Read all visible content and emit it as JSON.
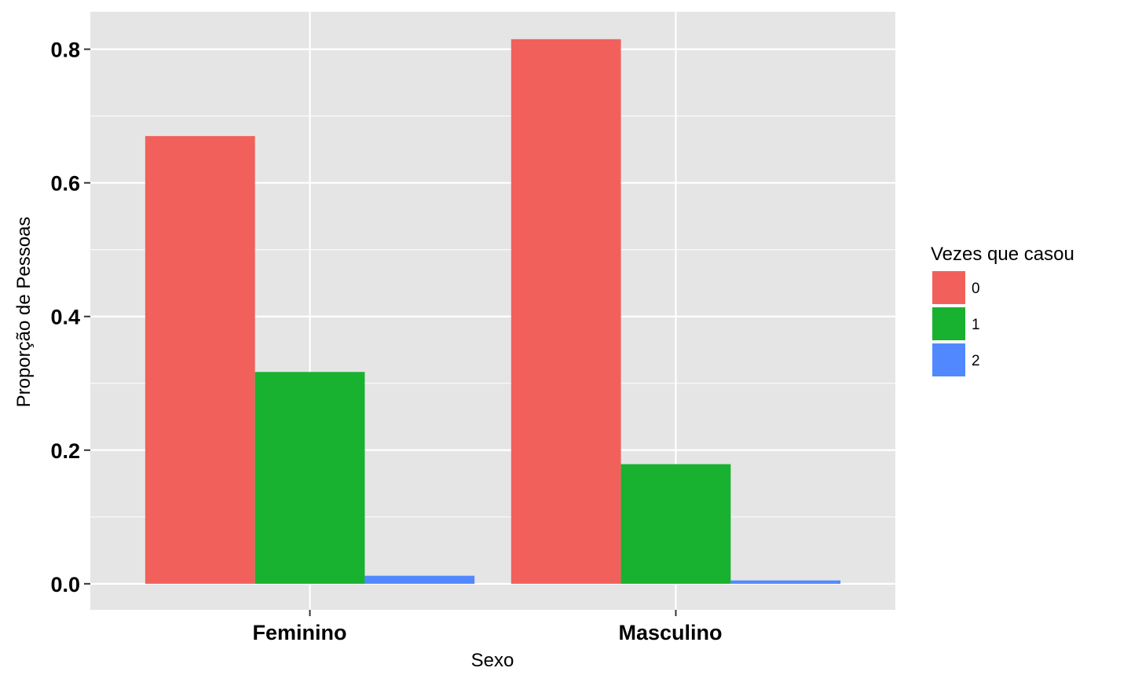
{
  "chart_data": {
    "type": "bar",
    "xlabel": "Sexo",
    "ylabel": "Proporção de Pessoas",
    "categories": [
      "Feminino",
      "Masculino"
    ],
    "series": [
      {
        "name": "0",
        "values": [
          0.67,
          0.815
        ],
        "color": "#F2605B"
      },
      {
        "name": "1",
        "values": [
          0.317,
          0.179
        ],
        "color": "#18B130"
      },
      {
        "name": "2",
        "values": [
          0.012,
          0.005
        ],
        "color": "#5288FF"
      }
    ],
    "ylim": [
      -0.039,
      0.856
    ],
    "yticks": [
      0.0,
      0.2,
      0.4,
      0.6,
      0.8
    ],
    "ytick_labels": [
      "0.0",
      "0.2",
      "0.4",
      "0.6",
      "0.8"
    ],
    "grid": true,
    "legend": {
      "title": "Vezes que casou",
      "position": "right"
    },
    "panel_background": "#E5E5E5"
  }
}
